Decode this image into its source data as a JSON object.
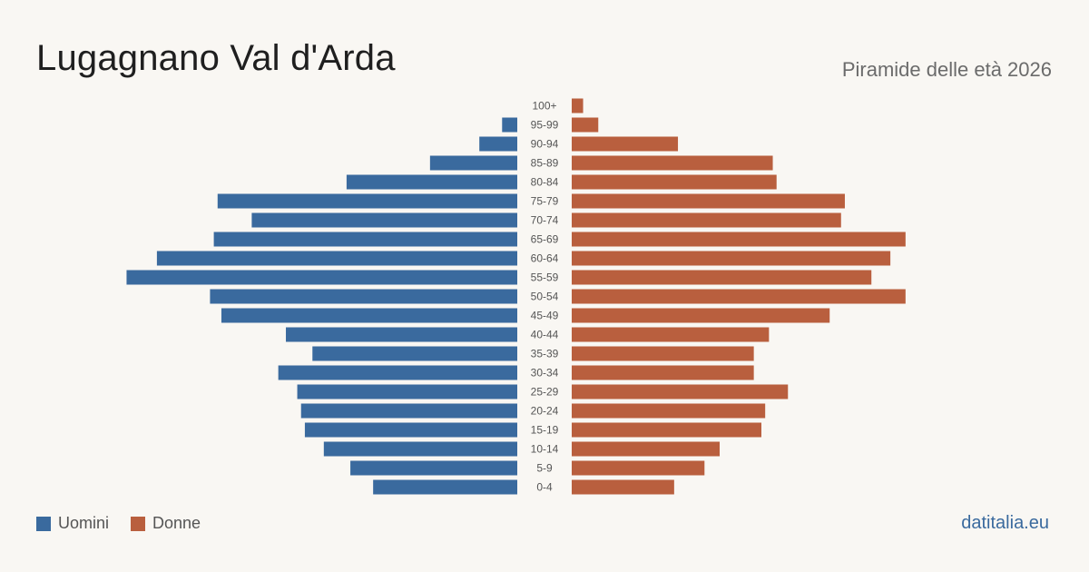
{
  "header": {
    "title": "Lugagnano Val d'Arda",
    "subtitle": "Piramide delle età 2026"
  },
  "legend": {
    "men_label": "Uomini",
    "women_label": "Donne"
  },
  "brand": "datitalia.eu",
  "colors": {
    "men": "#3a6a9e",
    "women": "#b95f3e",
    "background": "#f9f7f3"
  },
  "chart_data": {
    "type": "bar",
    "orientation": "horizontal-pyramid",
    "categories": [
      "100+",
      "95-99",
      "90-94",
      "85-89",
      "80-84",
      "75-79",
      "70-74",
      "65-69",
      "60-64",
      "55-59",
      "50-54",
      "45-49",
      "40-44",
      "35-39",
      "30-34",
      "25-29",
      "20-24",
      "15-19",
      "10-14",
      "5-9",
      "0-4"
    ],
    "series": [
      {
        "name": "Uomini",
        "values": [
          0,
          4,
          10,
          23,
          45,
          79,
          70,
          80,
          95,
          103,
          81,
          78,
          61,
          54,
          63,
          58,
          57,
          56,
          51,
          44,
          38
        ]
      },
      {
        "name": "Donne",
        "values": [
          3,
          7,
          28,
          53,
          54,
          72,
          71,
          88,
          84,
          79,
          88,
          68,
          52,
          48,
          48,
          57,
          51,
          50,
          39,
          35,
          27
        ]
      }
    ],
    "grid": false,
    "legend_position": "bottom-left"
  }
}
